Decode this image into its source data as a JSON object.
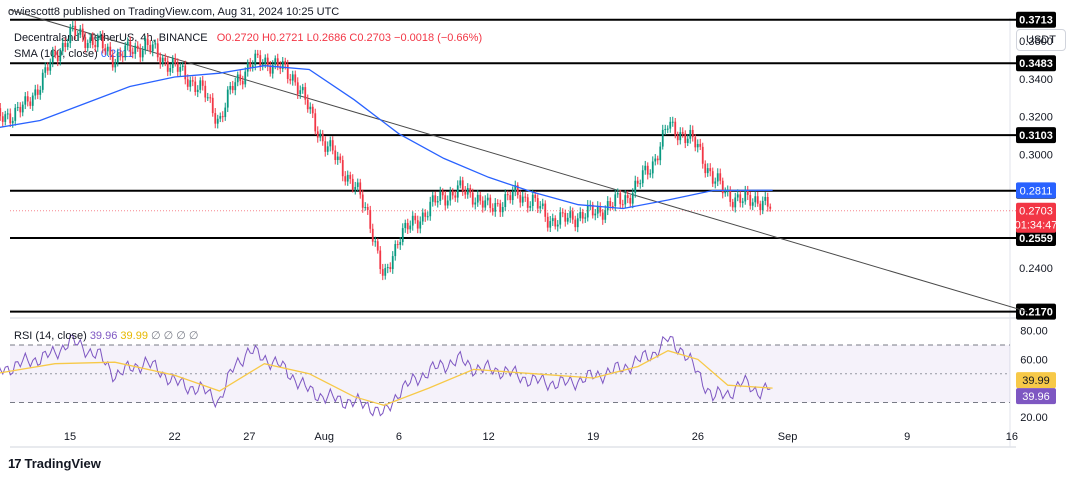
{
  "publisher": "owiescott8 published on TradingView.com, Aug 31, 2024 10:25 UTC",
  "legend": {
    "symbol": "Decentraland / TetherUS, 4h, BINANCE",
    "ohlc": "O0.2720 H0.2721 L0.2686 C0.2703 −0.0018 (−0.66%)",
    "sma_label": "SMA (100, close)",
    "sma_value": "0.2811"
  },
  "currency": "USDT",
  "brand": "TradingView",
  "brand_icon": "tradingview-logo-icon",
  "colors": {
    "up": "#089981",
    "down": "#f23645",
    "sma": "#2962ff",
    "rsi": "#7e57c2",
    "rsi_ma": "#f7c948",
    "trendline": "#4a4a4a"
  },
  "chart_data": [
    {
      "type": "candlestick",
      "title": "Decentraland / TetherUS, 4h, BINANCE",
      "ylim": [
        0.2136,
        0.3722
      ],
      "y_ticks": [
        "0.3600",
        "0.3400",
        "0.3200",
        "0.3000",
        "0.2400"
      ],
      "x_ticks": [
        "15",
        "22",
        "27",
        "Aug",
        "6",
        "12",
        "19",
        "26",
        "Sep",
        "9",
        "16"
      ],
      "horizontal_levels": [
        {
          "value": 0.3713,
          "label": "0.3713"
        },
        {
          "value": 0.3483,
          "label": "0.3483"
        },
        {
          "value": 0.3103,
          "label": "0.3103"
        },
        {
          "value": 0.2809,
          "label": "0.2809"
        },
        {
          "value": 0.2559,
          "label": "0.2559"
        },
        {
          "value": 0.217,
          "label": "0.2170"
        }
      ],
      "price_tags": [
        {
          "label": "0.2811",
          "color": "#2962ff",
          "value": 0.2811
        },
        {
          "label": "0.2703",
          "sub": "01:34:47",
          "color": "#f23645",
          "value": 0.2703
        }
      ],
      "last_close": 0.2703,
      "trendline": {
        "from": {
          "date": "2024-07-11",
          "value": 0.3765
        },
        "to": {
          "date": "2024-09-17",
          "value": 0.217
        }
      },
      "price_path": [
        [
          "2024-07-10",
          0.318
        ],
        [
          "2024-07-12",
          0.325
        ],
        [
          "2024-07-13",
          0.338
        ],
        [
          "2024-07-14",
          0.352
        ],
        [
          "2024-07-15",
          0.364
        ],
        [
          "2024-07-16",
          0.362
        ],
        [
          "2024-07-17",
          0.358
        ],
        [
          "2024-07-18",
          0.351
        ],
        [
          "2024-07-19",
          0.355
        ],
        [
          "2024-07-20",
          0.358
        ],
        [
          "2024-07-21",
          0.352
        ],
        [
          "2024-07-22",
          0.346
        ],
        [
          "2024-07-23",
          0.34
        ],
        [
          "2024-07-24",
          0.332
        ],
        [
          "2024-07-25",
          0.318
        ],
        [
          "2024-07-26",
          0.338
        ],
        [
          "2024-07-27",
          0.347
        ],
        [
          "2024-07-28",
          0.35
        ],
        [
          "2024-07-29",
          0.346
        ],
        [
          "2024-07-30",
          0.341
        ],
        [
          "2024-07-31",
          0.323
        ],
        [
          "2024-08-01",
          0.306
        ],
        [
          "2024-08-02",
          0.296
        ],
        [
          "2024-08-03",
          0.283
        ],
        [
          "2024-08-04",
          0.268
        ],
        [
          "2024-08-05",
          0.232
        ],
        [
          "2024-08-06",
          0.258
        ],
        [
          "2024-08-07",
          0.263
        ],
        [
          "2024-08-08",
          0.272
        ],
        [
          "2024-08-09",
          0.278
        ],
        [
          "2024-08-10",
          0.281
        ],
        [
          "2024-08-11",
          0.279
        ],
        [
          "2024-08-12",
          0.271
        ],
        [
          "2024-08-13",
          0.276
        ],
        [
          "2024-08-14",
          0.279
        ],
        [
          "2024-08-15",
          0.275
        ],
        [
          "2024-08-16",
          0.266
        ],
        [
          "2024-08-17",
          0.265
        ],
        [
          "2024-08-18",
          0.268
        ],
        [
          "2024-08-19",
          0.269
        ],
        [
          "2024-08-20",
          0.273
        ],
        [
          "2024-08-21",
          0.276
        ],
        [
          "2024-08-22",
          0.284
        ],
        [
          "2024-08-23",
          0.296
        ],
        [
          "2024-08-24",
          0.315
        ],
        [
          "2024-08-25",
          0.311
        ],
        [
          "2024-08-26",
          0.304
        ],
        [
          "2024-08-27",
          0.287
        ],
        [
          "2024-08-28",
          0.279
        ],
        [
          "2024-08-29",
          0.275
        ],
        [
          "2024-08-30",
          0.277
        ],
        [
          "2024-08-31",
          0.2703
        ]
      ],
      "sma": [
        [
          "2024-07-10",
          0.314
        ],
        [
          "2024-07-13",
          0.318
        ],
        [
          "2024-07-16",
          0.327
        ],
        [
          "2024-07-19",
          0.336
        ],
        [
          "2024-07-22",
          0.341
        ],
        [
          "2024-07-25",
          0.343
        ],
        [
          "2024-07-28",
          0.347
        ],
        [
          "2024-07-31",
          0.345
        ],
        [
          "2024-08-03",
          0.329
        ],
        [
          "2024-08-06",
          0.311
        ],
        [
          "2024-08-09",
          0.298
        ],
        [
          "2024-08-12",
          0.288
        ],
        [
          "2024-08-15",
          0.28
        ],
        [
          "2024-08-18",
          0.2735
        ],
        [
          "2024-08-21",
          0.2715
        ],
        [
          "2024-08-24",
          0.276
        ],
        [
          "2024-08-27",
          0.281
        ],
        [
          "2024-08-31",
          0.2811
        ]
      ]
    },
    {
      "type": "line",
      "title": "RSI (14, close)",
      "legend_values": [
        "39.96",
        "39.99"
      ],
      "legend_na": "∅ ∅ ∅ ∅",
      "ylim": [
        15,
        86
      ],
      "y_ticks": [
        "80.00",
        "60.00",
        "20.00"
      ],
      "band": [
        30,
        70
      ],
      "midline": 50,
      "tags": [
        {
          "label": "39.99",
          "value": 39.99,
          "color": "#f7c948"
        },
        {
          "label": "39.96",
          "value": 39.96,
          "color": "#7e57c2"
        }
      ],
      "series": [
        {
          "name": "RSI",
          "values": [
            [
              "2024-07-10",
              51
            ],
            [
              "2024-07-12",
              58
            ],
            [
              "2024-07-14",
              64
            ],
            [
              "2024-07-15",
              73
            ],
            [
              "2024-07-17",
              62
            ],
            [
              "2024-07-18",
              49
            ],
            [
              "2024-07-20",
              58
            ],
            [
              "2024-07-21",
              52
            ],
            [
              "2024-07-22",
              44
            ],
            [
              "2024-07-24",
              38
            ],
            [
              "2024-07-25",
              31
            ],
            [
              "2024-07-26",
              56
            ],
            [
              "2024-07-27",
              66
            ],
            [
              "2024-07-29",
              56
            ],
            [
              "2024-07-31",
              38
            ],
            [
              "2024-08-01",
              34
            ],
            [
              "2024-08-03",
              30
            ],
            [
              "2024-08-04",
              28
            ],
            [
              "2024-08-05",
              21
            ],
            [
              "2024-08-06",
              38
            ],
            [
              "2024-08-08",
              52
            ],
            [
              "2024-08-10",
              60
            ],
            [
              "2024-08-11",
              54
            ],
            [
              "2024-08-13",
              52
            ],
            [
              "2024-08-15",
              45
            ],
            [
              "2024-08-17",
              43
            ],
            [
              "2024-08-19",
              48
            ],
            [
              "2024-08-21",
              54
            ],
            [
              "2024-08-23",
              64
            ],
            [
              "2024-08-24",
              74
            ],
            [
              "2024-08-25",
              66
            ],
            [
              "2024-08-26",
              50
            ],
            [
              "2024-08-27",
              34
            ],
            [
              "2024-08-28",
              36
            ],
            [
              "2024-08-29",
              44
            ],
            [
              "2024-08-30",
              38
            ],
            [
              "2024-08-31",
              39.96
            ]
          ]
        },
        {
          "name": "RSI-based MA",
          "values": [
            [
              "2024-07-10",
              50
            ],
            [
              "2024-07-14",
              57
            ],
            [
              "2024-07-18",
              58
            ],
            [
              "2024-07-22",
              49
            ],
            [
              "2024-07-25",
              38
            ],
            [
              "2024-07-28",
              57
            ],
            [
              "2024-07-31",
              50
            ],
            [
              "2024-08-03",
              34
            ],
            [
              "2024-08-05",
              28
            ],
            [
              "2024-08-08",
              40
            ],
            [
              "2024-08-11",
              53
            ],
            [
              "2024-08-15",
              50
            ],
            [
              "2024-08-19",
              47
            ],
            [
              "2024-08-22",
              55
            ],
            [
              "2024-08-24",
              66
            ],
            [
              "2024-08-26",
              60
            ],
            [
              "2024-08-28",
              42
            ],
            [
              "2024-08-31",
              39.99
            ]
          ]
        }
      ]
    }
  ]
}
